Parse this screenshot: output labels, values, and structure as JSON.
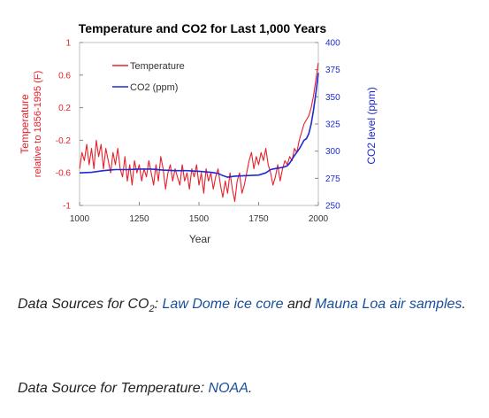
{
  "chart_data": {
    "type": "line",
    "title": "Temperature and CO2 for Last 1,000 Years",
    "xlabel": "Year",
    "ylabel_left": "Temperature relative to 1856-1995 (F)",
    "ylabel_left_lines": [
      "Temperature",
      "relative to 1856-1995 (F)"
    ],
    "ylabel_right": "CO2 level (ppm)",
    "xlim": [
      1000,
      2000
    ],
    "x_ticks": [
      "1000",
      "1250",
      "1500",
      "1750",
      "2000"
    ],
    "ylim_left": [
      -1,
      1
    ],
    "y_ticks_left": [
      "1",
      "0.6",
      "0.2",
      "-0.2",
      "-0.6",
      "-1"
    ],
    "ylim_right": [
      250,
      400
    ],
    "y_ticks_right": [
      "400",
      "375",
      "350",
      "325",
      "300",
      "275",
      "250"
    ],
    "legend": {
      "position": "top-left",
      "entries": [
        "Temperature",
        "CO2 (ppm)"
      ]
    },
    "colors": {
      "temperature": "#e8202a",
      "co2": "#1f2bd0",
      "left_axis": "#e8202a",
      "right_axis": "#1f2bd0"
    },
    "series": [
      {
        "name": "Temperature",
        "axis": "left",
        "x": [
          1000,
          1010,
          1020,
          1030,
          1040,
          1050,
          1060,
          1070,
          1080,
          1090,
          1100,
          1110,
          1120,
          1130,
          1140,
          1150,
          1160,
          1170,
          1180,
          1190,
          1200,
          1210,
          1220,
          1230,
          1240,
          1250,
          1260,
          1270,
          1280,
          1290,
          1300,
          1310,
          1320,
          1330,
          1340,
          1350,
          1360,
          1370,
          1380,
          1390,
          1400,
          1410,
          1420,
          1430,
          1440,
          1450,
          1460,
          1470,
          1480,
          1490,
          1500,
          1510,
          1520,
          1530,
          1540,
          1550,
          1560,
          1570,
          1580,
          1590,
          1600,
          1610,
          1620,
          1630,
          1640,
          1650,
          1660,
          1670,
          1680,
          1690,
          1700,
          1710,
          1720,
          1730,
          1740,
          1750,
          1760,
          1770,
          1780,
          1790,
          1800,
          1810,
          1820,
          1830,
          1840,
          1850,
          1860,
          1870,
          1880,
          1890,
          1900,
          1910,
          1920,
          1930,
          1940,
          1950,
          1960,
          1970,
          1980,
          1990,
          2000
        ],
        "values": [
          -0.55,
          -0.35,
          -0.45,
          -0.25,
          -0.5,
          -0.3,
          -0.55,
          -0.2,
          -0.4,
          -0.25,
          -0.55,
          -0.3,
          -0.45,
          -0.6,
          -0.35,
          -0.5,
          -0.3,
          -0.55,
          -0.65,
          -0.4,
          -0.7,
          -0.5,
          -0.75,
          -0.45,
          -0.6,
          -0.5,
          -0.7,
          -0.55,
          -0.65,
          -0.45,
          -0.6,
          -0.75,
          -0.5,
          -0.7,
          -0.4,
          -0.55,
          -0.8,
          -0.6,
          -0.5,
          -0.7,
          -0.55,
          -0.65,
          -0.75,
          -0.5,
          -0.7,
          -0.6,
          -0.8,
          -0.55,
          -0.65,
          -0.5,
          -0.75,
          -0.6,
          -0.85,
          -0.55,
          -0.7,
          -0.6,
          -0.8,
          -0.65,
          -0.55,
          -0.75,
          -0.9,
          -0.7,
          -0.85,
          -0.6,
          -0.8,
          -0.95,
          -0.7,
          -0.6,
          -0.85,
          -0.75,
          -0.6,
          -0.45,
          -0.35,
          -0.55,
          -0.4,
          -0.5,
          -0.35,
          -0.45,
          -0.3,
          -0.5,
          -0.6,
          -0.75,
          -0.65,
          -0.5,
          -0.7,
          -0.55,
          -0.45,
          -0.5,
          -0.4,
          -0.45,
          -0.3,
          -0.35,
          -0.2,
          -0.1,
          0.0,
          0.05,
          0.1,
          0.2,
          0.35,
          0.55,
          0.75
        ]
      },
      {
        "name": "CO2 (ppm)",
        "axis": "right",
        "x": [
          1000,
          1050,
          1100,
          1150,
          1200,
          1250,
          1300,
          1350,
          1400,
          1450,
          1500,
          1550,
          1580,
          1600,
          1620,
          1650,
          1700,
          1750,
          1780,
          1800,
          1820,
          1850,
          1870,
          1880,
          1900,
          1920,
          1940,
          1950,
          1960,
          1970,
          1980,
          1990,
          2000
        ],
        "values": [
          280,
          280.5,
          282,
          283,
          283,
          283.5,
          283.5,
          282.5,
          282,
          282,
          281.5,
          280.5,
          279.5,
          277.5,
          276,
          277,
          277.5,
          278,
          280,
          283,
          284,
          285,
          286.5,
          289,
          296,
          302,
          310,
          311.5,
          316,
          325,
          338,
          354,
          372
        ]
      }
    ]
  },
  "sources": {
    "co2_prefix": "Data Sources for CO",
    "co2_sub": "2",
    "co2_colon": ":",
    "co2_link1": "Law Dome ice core",
    "co2_and": "and",
    "co2_link2": "Mauna Loa air samples",
    "co2_end": ".",
    "temp_prefix": "Data Source for Temperature:",
    "temp_link": "NOAA",
    "temp_end": "."
  }
}
